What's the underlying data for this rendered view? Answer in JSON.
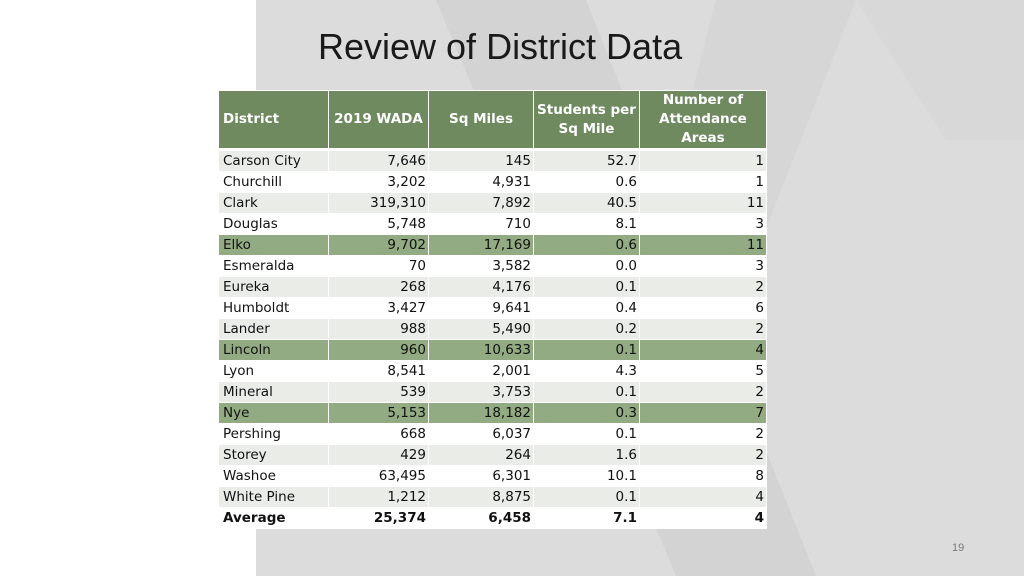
{
  "slide": {
    "title": "Review of District Data",
    "page_number": "19"
  },
  "table": {
    "headers": [
      "District",
      "2019 WADA",
      "Sq Miles",
      "Students per Sq Mile",
      "Number of Attendance Areas"
    ],
    "rows": [
      {
        "district": "Carson City",
        "wada": "7,646",
        "sq_miles": "145",
        "students_per_sq_mile": "52.7",
        "attendance_areas": "1"
      },
      {
        "district": "Churchill",
        "wada": "3,202",
        "sq_miles": "4,931",
        "students_per_sq_mile": "0.6",
        "attendance_areas": "1"
      },
      {
        "district": "Clark",
        "wada": "319,310",
        "sq_miles": "7,892",
        "students_per_sq_mile": "40.5",
        "attendance_areas": "11"
      },
      {
        "district": "Douglas",
        "wada": "5,748",
        "sq_miles": "710",
        "students_per_sq_mile": "8.1",
        "attendance_areas": "3"
      },
      {
        "district": "Elko",
        "wada": "9,702",
        "sq_miles": "17,169",
        "students_per_sq_mile": "0.6",
        "attendance_areas": "11"
      },
      {
        "district": "Esmeralda",
        "wada": "70",
        "sq_miles": "3,582",
        "students_per_sq_mile": "0.0",
        "attendance_areas": "3"
      },
      {
        "district": "Eureka",
        "wada": "268",
        "sq_miles": "4,176",
        "students_per_sq_mile": "0.1",
        "attendance_areas": "2"
      },
      {
        "district": "Humboldt",
        "wada": "3,427",
        "sq_miles": "9,641",
        "students_per_sq_mile": "0.4",
        "attendance_areas": "6"
      },
      {
        "district": "Lander",
        "wada": "988",
        "sq_miles": "5,490",
        "students_per_sq_mile": "0.2",
        "attendance_areas": "2"
      },
      {
        "district": "Lincoln",
        "wada": "960",
        "sq_miles": "10,633",
        "students_per_sq_mile": "0.1",
        "attendance_areas": "4"
      },
      {
        "district": "Lyon",
        "wada": "8,541",
        "sq_miles": "2,001",
        "students_per_sq_mile": "4.3",
        "attendance_areas": "5"
      },
      {
        "district": "Mineral",
        "wada": "539",
        "sq_miles": "3,753",
        "students_per_sq_mile": "0.1",
        "attendance_areas": "2"
      },
      {
        "district": "Nye",
        "wada": "5,153",
        "sq_miles": "18,182",
        "students_per_sq_mile": "0.3",
        "attendance_areas": "7"
      },
      {
        "district": "Pershing",
        "wada": "668",
        "sq_miles": "6,037",
        "students_per_sq_mile": "0.1",
        "attendance_areas": "2"
      },
      {
        "district": "Storey",
        "wada": "429",
        "sq_miles": "264",
        "students_per_sq_mile": "1.6",
        "attendance_areas": "2"
      },
      {
        "district": "Washoe",
        "wada": "63,495",
        "sq_miles": "6,301",
        "students_per_sq_mile": "10.1",
        "attendance_areas": "8"
      },
      {
        "district": "White Pine",
        "wada": "1,212",
        "sq_miles": "8,875",
        "students_per_sq_mile": "0.1",
        "attendance_areas": "4"
      }
    ],
    "average": {
      "district": "Average",
      "wada": "25,374",
      "sq_miles": "6,458",
      "students_per_sq_mile": "7.1",
      "attendance_areas": "4"
    }
  },
  "colors": {
    "header_bg": "#6e8a5e",
    "highlight_row": "#93ab82",
    "stripe_row": "#e9ece7",
    "panel_bg": "#dcdcdc"
  }
}
